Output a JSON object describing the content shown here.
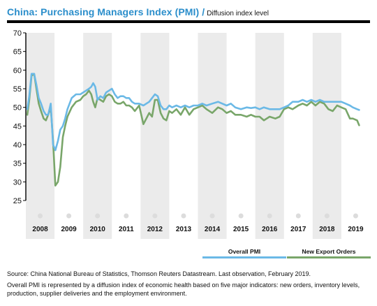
{
  "header": {
    "title": "China: Purchasing Managers Index (PMI)",
    "separator": "/",
    "subtitle": "Diffusion index level"
  },
  "footer": {
    "source": "Source: China National Bureau of Statistics, Thomson Reuters Datastream. Last observation, February 2019.",
    "note": "Overall PMI is represented by a diffusion index of economic health based on five major indicators: new orders, inventory levels, production, supplier deliveries and the employment environment."
  },
  "chart_data": {
    "type": "line",
    "title": "China: Purchasing Managers Index (PMI)",
    "subtitle": "Diffusion index level",
    "ylim": [
      25,
      70
    ],
    "yticks": [
      25,
      30,
      35,
      40,
      45,
      50,
      55,
      60,
      65,
      70
    ],
    "xlim": [
      2007.5,
      2019.5
    ],
    "xticks": [
      2008,
      2009,
      2010,
      2011,
      2012,
      2013,
      2014,
      2015,
      2016,
      2017,
      2018,
      2019
    ],
    "grid": "alternating shaded year bands",
    "legend_position": "bottom-right",
    "colors": {
      "overall": "#6bb9e6",
      "export": "#79a66a",
      "band": "#ebebeb",
      "title": "#2b8ecb",
      "marker": "#dcdcdc"
    },
    "series": [
      {
        "name": "Overall PMI",
        "x": [
          2007.55,
          2007.62,
          2007.7,
          2007.79,
          2007.87,
          2007.95,
          2008.03,
          2008.12,
          2008.2,
          2008.28,
          2008.37,
          2008.45,
          2008.53,
          2008.62,
          2008.7,
          2008.79,
          2008.87,
          2008.95,
          2009.1,
          2009.25,
          2009.4,
          2009.5,
          2009.6,
          2009.7,
          2009.78,
          2009.85,
          2009.92,
          2010.0,
          2010.1,
          2010.2,
          2010.3,
          2010.4,
          2010.5,
          2010.6,
          2010.7,
          2010.8,
          2010.9,
          2011.0,
          2011.1,
          2011.2,
          2011.3,
          2011.45,
          2011.6,
          2011.7,
          2011.8,
          2011.9,
          2012.0,
          2012.1,
          2012.2,
          2012.3,
          2012.4,
          2012.5,
          2012.6,
          2012.75,
          2012.9,
          2013.05,
          2013.2,
          2013.35,
          2013.5,
          2013.65,
          2013.8,
          2014.0,
          2014.2,
          2014.35,
          2014.5,
          2014.65,
          2014.8,
          2015.0,
          2015.2,
          2015.35,
          2015.5,
          2015.65,
          2015.8,
          2016.0,
          2016.2,
          2016.35,
          2016.5,
          2016.65,
          2016.8,
          2017.0,
          2017.15,
          2017.3,
          2017.45,
          2017.6,
          2017.75,
          2017.9,
          2018.05,
          2018.2,
          2018.35,
          2018.5,
          2018.65,
          2018.8,
          2018.9,
          2019.05,
          2019.12
        ],
        "values": [
          49.5,
          53,
          59,
          59,
          56,
          52.5,
          51,
          49,
          48,
          48,
          51,
          40,
          38.5,
          41,
          44,
          45,
          47,
          49.5,
          52.5,
          53.5,
          53.5,
          54,
          54.5,
          55,
          55.5,
          56.5,
          55.5,
          52,
          53,
          52.5,
          54,
          54.5,
          55,
          53.5,
          52.5,
          53,
          53,
          52.5,
          52.5,
          51.5,
          51,
          51,
          50.5,
          51,
          51.5,
          52.5,
          53.5,
          53,
          50.5,
          49.5,
          49.5,
          50.5,
          50,
          50.5,
          50,
          50.5,
          50,
          50.5,
          50.5,
          51,
          50.5,
          51,
          51.5,
          51,
          50.5,
          51,
          50,
          49.5,
          50,
          49.8,
          50,
          49.5,
          50,
          49.5,
          49.5,
          49.5,
          50,
          50.5,
          51.5,
          51.5,
          52,
          51.5,
          52,
          51.5,
          52,
          51.5,
          51.5,
          51.5,
          51.5,
          51.5,
          51,
          50.5,
          50,
          49.5,
          49.3
        ]
      },
      {
        "name": "New Export Orders",
        "x": [
          2007.55,
          2007.62,
          2007.7,
          2007.79,
          2007.87,
          2007.95,
          2008.03,
          2008.12,
          2008.2,
          2008.28,
          2008.37,
          2008.45,
          2008.53,
          2008.62,
          2008.7,
          2008.79,
          2008.87,
          2008.95,
          2009.1,
          2009.25,
          2009.4,
          2009.5,
          2009.6,
          2009.7,
          2009.78,
          2009.85,
          2009.92,
          2010.0,
          2010.1,
          2010.2,
          2010.3,
          2010.4,
          2010.5,
          2010.6,
          2010.7,
          2010.8,
          2010.9,
          2011.0,
          2011.1,
          2011.2,
          2011.3,
          2011.45,
          2011.6,
          2011.7,
          2011.8,
          2011.9,
          2012.0,
          2012.1,
          2012.2,
          2012.3,
          2012.4,
          2012.5,
          2012.6,
          2012.75,
          2012.9,
          2013.05,
          2013.2,
          2013.35,
          2013.5,
          2013.65,
          2013.8,
          2014.0,
          2014.2,
          2014.35,
          2014.5,
          2014.65,
          2014.8,
          2015.0,
          2015.2,
          2015.35,
          2015.5,
          2015.65,
          2015.8,
          2016.0,
          2016.2,
          2016.35,
          2016.5,
          2016.65,
          2016.8,
          2017.0,
          2017.15,
          2017.3,
          2017.45,
          2017.6,
          2017.75,
          2017.9,
          2018.05,
          2018.2,
          2018.35,
          2018.5,
          2018.65,
          2018.8,
          2018.9,
          2019.05,
          2019.12
        ],
        "values": [
          48,
          52,
          58.5,
          59,
          55,
          51,
          49,
          47,
          46.5,
          48,
          50,
          41,
          29,
          30,
          34,
          42,
          45,
          47.5,
          50,
          51.5,
          52,
          53,
          53.5,
          54.5,
          53.5,
          51.5,
          50,
          52.5,
          52,
          51.5,
          53,
          53.5,
          53,
          51.5,
          51,
          51,
          51.5,
          50.5,
          50.5,
          50,
          49,
          50.5,
          45.5,
          47,
          48.5,
          47.5,
          52,
          52,
          48.5,
          47,
          46.5,
          49,
          48.5,
          49.5,
          48,
          50,
          48,
          49.5,
          50,
          50.5,
          49.5,
          48.5,
          50,
          49.5,
          48.5,
          49,
          48,
          48,
          47.5,
          48,
          47.5,
          47.5,
          46.5,
          47.5,
          47,
          47.5,
          49.5,
          50,
          49.5,
          50.5,
          51,
          50.5,
          51.5,
          50.5,
          51.5,
          51,
          49.5,
          49,
          50.5,
          50,
          49.5,
          47,
          47,
          46.5,
          45.2
        ]
      }
    ]
  }
}
